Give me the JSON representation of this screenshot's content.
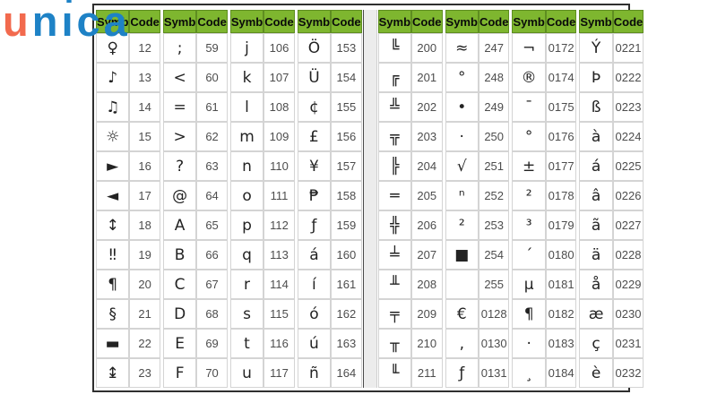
{
  "logo": {
    "letters": [
      {
        "char": "u",
        "color": "#f26a4e"
      },
      {
        "char": "n",
        "color": "#1e82c6"
      },
      {
        "char": "i",
        "color": "#1e82c6",
        "arrow": true
      },
      {
        "char": "c",
        "color": "#1e82c6"
      },
      {
        "char": "a",
        "color": "#1e82c6"
      }
    ],
    "arrow_color": "#1e82c6"
  },
  "table_header": {
    "symb": "Symb",
    "code": "Code"
  },
  "colors": {
    "header_bg": "#7eb62f",
    "header_border": "#5e8d20",
    "cell_border": "#d4d4d4",
    "outer_border": "#2f2f2f",
    "symb_text": "#232323",
    "code_text": "#4d4d4d",
    "gutter_bg": "#ececec"
  },
  "tables": [
    {
      "name": "left",
      "groups": [
        [
          {
            "s": "♀",
            "c": "12"
          },
          {
            "s": "♪",
            "c": "13"
          },
          {
            "s": "♫",
            "c": "14"
          },
          {
            "s": "☼",
            "c": "15"
          },
          {
            "s": "►",
            "c": "16"
          },
          {
            "s": "◄",
            "c": "17"
          },
          {
            "s": "↕",
            "c": "18"
          },
          {
            "s": "‼",
            "c": "19"
          },
          {
            "s": "¶",
            "c": "20"
          },
          {
            "s": "§",
            "c": "21"
          },
          {
            "s": "▬",
            "c": "22"
          },
          {
            "s": "↨",
            "c": "23"
          }
        ],
        [
          {
            "s": ";",
            "c": "59"
          },
          {
            "s": "<",
            "c": "60"
          },
          {
            "s": "=",
            "c": "61"
          },
          {
            "s": ">",
            "c": "62"
          },
          {
            "s": "?",
            "c": "63"
          },
          {
            "s": "@",
            "c": "64"
          },
          {
            "s": "A",
            "c": "65"
          },
          {
            "s": "B",
            "c": "66"
          },
          {
            "s": "C",
            "c": "67"
          },
          {
            "s": "D",
            "c": "68"
          },
          {
            "s": "E",
            "c": "69"
          },
          {
            "s": "F",
            "c": "70"
          }
        ],
        [
          {
            "s": "j",
            "c": "106"
          },
          {
            "s": "k",
            "c": "107"
          },
          {
            "s": "l",
            "c": "108"
          },
          {
            "s": "m",
            "c": "109"
          },
          {
            "s": "n",
            "c": "110"
          },
          {
            "s": "o",
            "c": "111"
          },
          {
            "s": "p",
            "c": "112"
          },
          {
            "s": "q",
            "c": "113"
          },
          {
            "s": "r",
            "c": "114"
          },
          {
            "s": "s",
            "c": "115"
          },
          {
            "s": "t",
            "c": "116"
          },
          {
            "s": "u",
            "c": "117"
          }
        ],
        [
          {
            "s": "Ö",
            "c": "153"
          },
          {
            "s": "Ü",
            "c": "154"
          },
          {
            "s": "¢",
            "c": "155"
          },
          {
            "s": "£",
            "c": "156"
          },
          {
            "s": "¥",
            "c": "157"
          },
          {
            "s": "₱",
            "c": "158"
          },
          {
            "s": "ƒ",
            "c": "159"
          },
          {
            "s": "á",
            "c": "160"
          },
          {
            "s": "í",
            "c": "161"
          },
          {
            "s": "ó",
            "c": "162"
          },
          {
            "s": "ú",
            "c": "163"
          },
          {
            "s": "ñ",
            "c": "164"
          }
        ]
      ]
    },
    {
      "name": "right",
      "groups": [
        [
          {
            "s": "╚",
            "c": "200"
          },
          {
            "s": "╔",
            "c": "201"
          },
          {
            "s": "╩",
            "c": "202"
          },
          {
            "s": "╦",
            "c": "203"
          },
          {
            "s": "╠",
            "c": "204"
          },
          {
            "s": "═",
            "c": "205"
          },
          {
            "s": "╬",
            "c": "206"
          },
          {
            "s": "╧",
            "c": "207"
          },
          {
            "s": "╨",
            "c": "208"
          },
          {
            "s": "╤",
            "c": "209"
          },
          {
            "s": "╥",
            "c": "210"
          },
          {
            "s": "╙",
            "c": "211"
          }
        ],
        [
          {
            "s": "≈",
            "c": "247"
          },
          {
            "s": "°",
            "c": "248"
          },
          {
            "s": "•",
            "c": "249"
          },
          {
            "s": "·",
            "c": "250"
          },
          {
            "s": "√",
            "c": "251"
          },
          {
            "s": "ⁿ",
            "c": "252"
          },
          {
            "s": "²",
            "c": "253"
          },
          {
            "s": "■",
            "c": "254"
          },
          {
            "s": "",
            "c": "255"
          },
          {
            "s": "€",
            "c": "0128"
          },
          {
            "s": "‚",
            "c": "0130"
          },
          {
            "s": "ƒ",
            "c": "0131"
          }
        ],
        [
          {
            "s": "¬",
            "c": "0172"
          },
          {
            "s": "®",
            "c": "0174"
          },
          {
            "s": "¯",
            "c": "0175"
          },
          {
            "s": "°",
            "c": "0176"
          },
          {
            "s": "±",
            "c": "0177"
          },
          {
            "s": "²",
            "c": "0178"
          },
          {
            "s": "³",
            "c": "0179"
          },
          {
            "s": "´",
            "c": "0180"
          },
          {
            "s": "µ",
            "c": "0181"
          },
          {
            "s": "¶",
            "c": "0182"
          },
          {
            "s": "·",
            "c": "0183"
          },
          {
            "s": "¸",
            "c": "0184"
          }
        ],
        [
          {
            "s": "Ý",
            "c": "0221"
          },
          {
            "s": "Þ",
            "c": "0222"
          },
          {
            "s": "ß",
            "c": "0223"
          },
          {
            "s": "à",
            "c": "0224"
          },
          {
            "s": "á",
            "c": "0225"
          },
          {
            "s": "â",
            "c": "0226"
          },
          {
            "s": "ã",
            "c": "0227"
          },
          {
            "s": "ä",
            "c": "0228"
          },
          {
            "s": "å",
            "c": "0229"
          },
          {
            "s": "æ",
            "c": "0230"
          },
          {
            "s": "ç",
            "c": "0231"
          },
          {
            "s": "è",
            "c": "0232"
          }
        ]
      ]
    }
  ]
}
